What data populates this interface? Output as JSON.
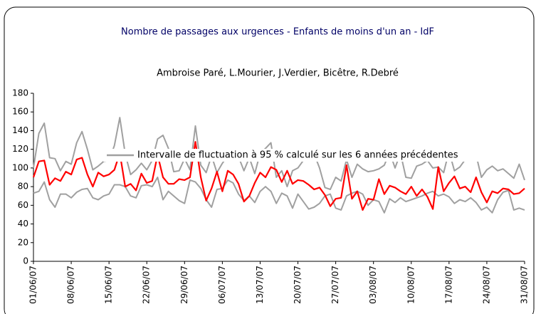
{
  "chart_data": {
    "type": "line",
    "title": "Nombre de passages aux urgences - Enfants de moins d'un an - IdF",
    "subtitle": "Ambroise Paré, L.Mourier, J.Verdier, Bicêtre, R.Debré",
    "categories": [
      "01/06/07",
      null,
      null,
      null,
      null,
      null,
      null,
      "08/06/07",
      null,
      null,
      null,
      null,
      null,
      null,
      "15/06/07",
      null,
      null,
      null,
      null,
      null,
      null,
      "22/06/07",
      null,
      null,
      null,
      null,
      null,
      null,
      "29/06/07",
      null,
      null,
      null,
      null,
      null,
      null,
      "06/07/07",
      null,
      null,
      null,
      null,
      null,
      null,
      "13/07/07",
      null,
      null,
      null,
      null,
      null,
      null,
      "20/07/07",
      null,
      null,
      null,
      null,
      null,
      null,
      "27/07/07",
      null,
      null,
      null,
      null,
      null,
      null,
      "03/08/07",
      null,
      null,
      null,
      null,
      null,
      null,
      "10/08/07",
      null,
      null,
      null,
      null,
      null,
      null,
      "17/08/07",
      null,
      null,
      null,
      null,
      null,
      null,
      "24/08/07",
      null,
      null,
      null,
      null,
      null,
      null,
      "31/08/07"
    ],
    "series": [
      {
        "name": "Intervalle de fluctuation à 95 % calculé sur les 6 années précédentes",
        "color": "#a0a0a0",
        "values": [
          100,
          137,
          148,
          111,
          110,
          97,
          107,
          104,
          127,
          139,
          120,
          98,
          102,
          107,
          108,
          124,
          154,
          115,
          93,
          98,
          105,
          98,
          108,
          131,
          135,
          121,
          96,
          97,
          110,
          98,
          145,
          103,
          95,
          113,
          95,
          105,
          113,
          117,
          112,
          97,
          111,
          94,
          116,
          121,
          127,
          90,
          97,
          80,
          97,
          100,
          108,
          110,
          115,
          100,
          79,
          77,
          90,
          86,
          109,
          90,
          104,
          99,
          96,
          97,
          99,
          103,
          117,
          100,
          116,
          90,
          89,
          102,
          104,
          108,
          100,
          101,
          95,
          118,
          97,
          101,
          109,
          108,
          114,
          90,
          98,
          102,
          97,
          99,
          94,
          89,
          104,
          87
        ]
      },
      {
        "color": "#a0a0a0",
        "values": [
          73,
          75,
          85,
          66,
          58,
          72,
          72,
          68,
          74,
          77,
          78,
          68,
          66,
          70,
          72,
          82,
          82,
          80,
          70,
          68,
          81,
          82,
          80,
          90,
          66,
          75,
          70,
          65,
          62,
          87,
          85,
          78,
          66,
          58,
          77,
          78,
          87,
          84,
          72,
          65,
          70,
          63,
          75,
          80,
          75,
          62,
          73,
          70,
          57,
          72,
          64,
          56,
          58,
          62,
          70,
          72,
          57,
          55,
          70,
          73,
          75,
          72,
          60,
          66,
          64,
          52,
          67,
          63,
          68,
          64,
          66,
          68,
          70,
          73,
          75,
          70,
          72,
          69,
          62,
          66,
          64,
          68,
          63,
          55,
          58,
          52,
          66,
          74,
          76,
          55,
          57,
          55
        ]
      },
      {
        "color": "#ff0000",
        "values": [
          90,
          107,
          108,
          82,
          89,
          86,
          96,
          93,
          109,
          111,
          93,
          80,
          95,
          91,
          93,
          98,
          116,
          80,
          83,
          76,
          94,
          84,
          86,
          114,
          90,
          83,
          83,
          88,
          87,
          90,
          128,
          90,
          65,
          78,
          96,
          75,
          97,
          93,
          83,
          64,
          70,
          84,
          95,
          90,
          101,
          98,
          85,
          97,
          83,
          87,
          86,
          82,
          77,
          79,
          71,
          59,
          67,
          68,
          103,
          67,
          75,
          55,
          67,
          66,
          88,
          72,
          81,
          79,
          75,
          72,
          80,
          70,
          77,
          69,
          56,
          101,
          75,
          84,
          91,
          78,
          80,
          74,
          90,
          74,
          63,
          75,
          73,
          78,
          77,
          72,
          73,
          78
        ]
      }
    ],
    "ylim": [
      0,
      180
    ],
    "yticks": [
      0,
      20,
      40,
      60,
      80,
      100,
      120,
      140,
      160,
      180
    ],
    "grid": false
  }
}
